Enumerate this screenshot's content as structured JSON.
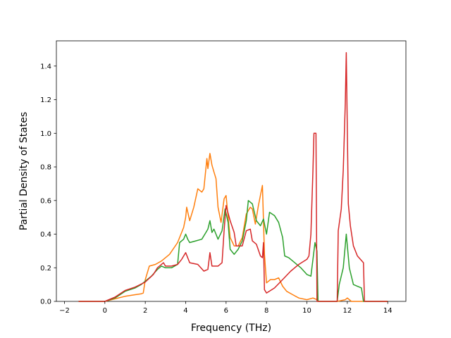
{
  "chart_data": {
    "type": "line",
    "title": "",
    "xlabel": "Frequency (THz)",
    "ylabel": "Partial Density of States",
    "xlim": [
      -2.4,
      14.9
    ],
    "ylim": [
      0,
      1.55
    ],
    "xticks": [
      -2,
      0,
      2,
      4,
      6,
      8,
      10,
      12,
      14
    ],
    "xtick_labels": [
      "−2",
      "0",
      "2",
      "4",
      "6",
      "8",
      "10",
      "12",
      "14"
    ],
    "yticks": [
      0,
      0.2,
      0.4,
      0.6,
      0.8,
      1.0,
      1.2,
      1.4
    ],
    "ytick_labels": [
      "0.0",
      "0.2",
      "0.4",
      "0.6",
      "0.8",
      "1.0",
      "1.2",
      "1.4"
    ],
    "grid": false,
    "legend": "none",
    "series": [
      {
        "color": "#ff7f0e",
        "points": [
          [
            -1.3,
            0
          ],
          [
            0,
            0
          ],
          [
            0.5,
            0.015
          ],
          [
            1.0,
            0.03
          ],
          [
            1.5,
            0.04
          ],
          [
            1.8,
            0.045
          ],
          [
            1.9,
            0.05
          ],
          [
            2.0,
            0.13
          ],
          [
            2.2,
            0.21
          ],
          [
            2.5,
            0.22
          ],
          [
            2.8,
            0.24
          ],
          [
            3.2,
            0.28
          ],
          [
            3.6,
            0.35
          ],
          [
            3.9,
            0.44
          ],
          [
            4.0,
            0.5
          ],
          [
            4.05,
            0.56
          ],
          [
            4.2,
            0.48
          ],
          [
            4.4,
            0.56
          ],
          [
            4.6,
            0.67
          ],
          [
            4.8,
            0.65
          ],
          [
            4.9,
            0.67
          ],
          [
            5.05,
            0.85
          ],
          [
            5.1,
            0.79
          ],
          [
            5.2,
            0.88
          ],
          [
            5.3,
            0.81
          ],
          [
            5.4,
            0.77
          ],
          [
            5.5,
            0.73
          ],
          [
            5.6,
            0.56
          ],
          [
            5.75,
            0.47
          ],
          [
            5.9,
            0.61
          ],
          [
            6.0,
            0.63
          ],
          [
            6.1,
            0.5
          ],
          [
            6.2,
            0.38
          ],
          [
            6.4,
            0.33
          ],
          [
            6.6,
            0.33
          ],
          [
            6.8,
            0.38
          ],
          [
            7.0,
            0.52
          ],
          [
            7.2,
            0.56
          ],
          [
            7.3,
            0.55
          ],
          [
            7.45,
            0.46
          ],
          [
            7.6,
            0.57
          ],
          [
            7.8,
            0.69
          ],
          [
            7.9,
            0.28
          ],
          [
            8.0,
            0.11
          ],
          [
            8.2,
            0.13
          ],
          [
            8.4,
            0.13
          ],
          [
            8.6,
            0.14
          ],
          [
            8.8,
            0.09
          ],
          [
            9.0,
            0.06
          ],
          [
            9.3,
            0.04
          ],
          [
            9.6,
            0.02
          ],
          [
            10.0,
            0.01
          ],
          [
            10.3,
            0.02
          ],
          [
            10.5,
            0.01
          ],
          [
            10.6,
            0
          ],
          [
            11.5,
            0
          ],
          [
            11.9,
            0.01
          ],
          [
            12.0,
            0.02
          ],
          [
            12.2,
            0
          ],
          [
            14.0,
            0
          ]
        ]
      },
      {
        "color": "#2ca02c",
        "points": [
          [
            -1.3,
            0
          ],
          [
            0,
            0
          ],
          [
            0.5,
            0.02
          ],
          [
            1.0,
            0.06
          ],
          [
            1.5,
            0.08
          ],
          [
            1.8,
            0.1
          ],
          [
            2.1,
            0.13
          ],
          [
            2.3,
            0.15
          ],
          [
            2.6,
            0.19
          ],
          [
            2.8,
            0.21
          ],
          [
            3.0,
            0.2
          ],
          [
            3.3,
            0.2
          ],
          [
            3.6,
            0.22
          ],
          [
            3.7,
            0.35
          ],
          [
            3.9,
            0.37
          ],
          [
            4.0,
            0.4
          ],
          [
            4.1,
            0.37
          ],
          [
            4.2,
            0.35
          ],
          [
            4.5,
            0.36
          ],
          [
            4.8,
            0.37
          ],
          [
            5.0,
            0.41
          ],
          [
            5.1,
            0.43
          ],
          [
            5.2,
            0.48
          ],
          [
            5.3,
            0.41
          ],
          [
            5.4,
            0.43
          ],
          [
            5.6,
            0.37
          ],
          [
            5.8,
            0.42
          ],
          [
            5.95,
            0.55
          ],
          [
            6.1,
            0.47
          ],
          [
            6.2,
            0.31
          ],
          [
            6.4,
            0.28
          ],
          [
            6.6,
            0.31
          ],
          [
            6.8,
            0.36
          ],
          [
            7.0,
            0.48
          ],
          [
            7.1,
            0.6
          ],
          [
            7.3,
            0.58
          ],
          [
            7.5,
            0.48
          ],
          [
            7.7,
            0.45
          ],
          [
            7.85,
            0.49
          ],
          [
            8.0,
            0.4
          ],
          [
            8.15,
            0.53
          ],
          [
            8.4,
            0.51
          ],
          [
            8.6,
            0.47
          ],
          [
            8.8,
            0.38
          ],
          [
            8.9,
            0.27
          ],
          [
            9.1,
            0.26
          ],
          [
            9.4,
            0.23
          ],
          [
            9.7,
            0.2
          ],
          [
            10.0,
            0.16
          ],
          [
            10.2,
            0.15
          ],
          [
            10.4,
            0.35
          ],
          [
            10.5,
            0.3
          ],
          [
            10.55,
            0
          ],
          [
            11.5,
            0
          ],
          [
            11.6,
            0.1
          ],
          [
            11.8,
            0.2
          ],
          [
            11.95,
            0.4
          ],
          [
            12.1,
            0.2
          ],
          [
            12.3,
            0.1
          ],
          [
            12.7,
            0.08
          ],
          [
            12.8,
            0
          ],
          [
            14.0,
            0
          ]
        ]
      },
      {
        "color": "#d62728",
        "points": [
          [
            -1.3,
            0
          ],
          [
            0,
            0
          ],
          [
            0.5,
            0.025
          ],
          [
            1.0,
            0.065
          ],
          [
            1.5,
            0.085
          ],
          [
            2.0,
            0.115
          ],
          [
            2.4,
            0.16
          ],
          [
            2.6,
            0.2
          ],
          [
            2.9,
            0.23
          ],
          [
            3.0,
            0.21
          ],
          [
            3.3,
            0.21
          ],
          [
            3.6,
            0.22
          ],
          [
            3.8,
            0.25
          ],
          [
            4.0,
            0.29
          ],
          [
            4.2,
            0.23
          ],
          [
            4.6,
            0.22
          ],
          [
            4.9,
            0.18
          ],
          [
            5.1,
            0.19
          ],
          [
            5.2,
            0.29
          ],
          [
            5.3,
            0.21
          ],
          [
            5.6,
            0.21
          ],
          [
            5.8,
            0.23
          ],
          [
            5.9,
            0.42
          ],
          [
            6.0,
            0.57
          ],
          [
            6.2,
            0.48
          ],
          [
            6.4,
            0.41
          ],
          [
            6.5,
            0.33
          ],
          [
            6.8,
            0.33
          ],
          [
            7.0,
            0.42
          ],
          [
            7.2,
            0.43
          ],
          [
            7.3,
            0.36
          ],
          [
            7.5,
            0.34
          ],
          [
            7.7,
            0.27
          ],
          [
            7.8,
            0.26
          ],
          [
            7.85,
            0.35
          ],
          [
            7.9,
            0.07
          ],
          [
            8.0,
            0.05
          ],
          [
            8.4,
            0.08
          ],
          [
            8.8,
            0.13
          ],
          [
            9.2,
            0.18
          ],
          [
            9.6,
            0.22
          ],
          [
            10.0,
            0.25
          ],
          [
            10.1,
            0.27
          ],
          [
            10.2,
            0.4
          ],
          [
            10.3,
            0.78
          ],
          [
            10.35,
            1.0
          ],
          [
            10.45,
            1.0
          ],
          [
            10.5,
            0
          ],
          [
            11.5,
            0
          ],
          [
            11.55,
            0.42
          ],
          [
            11.7,
            0.55
          ],
          [
            11.8,
            0.78
          ],
          [
            11.9,
            1.18
          ],
          [
            11.95,
            1.48
          ],
          [
            12.05,
            0.58
          ],
          [
            12.15,
            0.45
          ],
          [
            12.3,
            0.33
          ],
          [
            12.5,
            0.27
          ],
          [
            12.8,
            0.23
          ],
          [
            12.85,
            0
          ],
          [
            14.0,
            0
          ]
        ]
      }
    ]
  }
}
